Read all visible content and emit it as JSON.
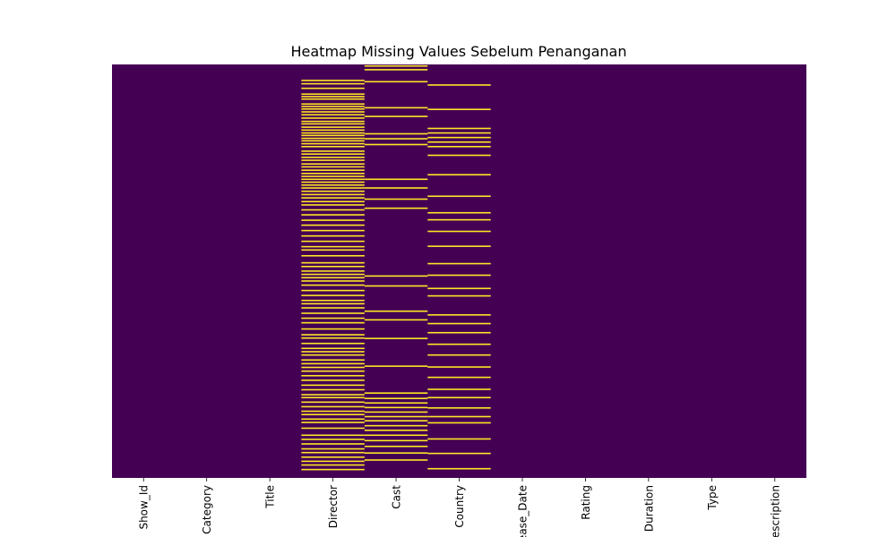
{
  "chart_data": {
    "type": "heatmap",
    "title": "Heatmap Missing Values Sebelum Penanganan",
    "columns": [
      "Show_Id",
      "Category",
      "Title",
      "Director",
      "Cast",
      "Country",
      "Release_Date",
      "Rating",
      "Duration",
      "Type",
      "Description"
    ],
    "y_tick_labels": "hidden",
    "colorbar": false,
    "value_colors": {
      "present": "#440154",
      "missing": "#fde725"
    },
    "missing_rows": {
      "Director": [
        0.037,
        0.045,
        0.056,
        0.07,
        0.076,
        0.082,
        0.094,
        0.1,
        0.106,
        0.113,
        0.12,
        0.128,
        0.136,
        0.142,
        0.15,
        0.157,
        0.164,
        0.17,
        0.177,
        0.183,
        0.19,
        0.197,
        0.208,
        0.215,
        0.223,
        0.23,
        0.239,
        0.246,
        0.254,
        0.262,
        0.269,
        0.276,
        0.283,
        0.29,
        0.297,
        0.305,
        0.313,
        0.321,
        0.33,
        0.338,
        0.35,
        0.362,
        0.375,
        0.387,
        0.4,
        0.413,
        0.426,
        0.439,
        0.447,
        0.461,
        0.478,
        0.487,
        0.498,
        0.506,
        0.514,
        0.522,
        0.532,
        0.545,
        0.557,
        0.569,
        0.577,
        0.587,
        0.6,
        0.612,
        0.623,
        0.638,
        0.652,
        0.66,
        0.673,
        0.685,
        0.693,
        0.701,
        0.713,
        0.722,
        0.731,
        0.74,
        0.751,
        0.762,
        0.774,
        0.785,
        0.797,
        0.804,
        0.815,
        0.826,
        0.837,
        0.845,
        0.856,
        0.864,
        0.878,
        0.895,
        0.905,
        0.916,
        0.928,
        0.937,
        0.948,
        0.958,
        0.967,
        0.978
      ],
      "Cast": [
        0.002,
        0.011,
        0.04,
        0.103,
        0.124,
        0.166,
        0.178,
        0.192,
        0.276,
        0.297,
        0.324,
        0.346,
        0.51,
        0.534,
        0.595,
        0.616,
        0.661,
        0.728,
        0.793,
        0.806,
        0.817,
        0.828,
        0.839,
        0.85,
        0.86,
        0.872,
        0.883,
        0.895,
        0.908,
        0.922,
        0.938,
        0.955
      ],
      "Country": [
        0.048,
        0.107,
        0.153,
        0.164,
        0.175,
        0.186,
        0.197,
        0.218,
        0.265,
        0.317,
        0.357,
        0.374,
        0.402,
        0.438,
        0.48,
        0.508,
        0.54,
        0.558,
        0.604,
        0.625,
        0.647,
        0.675,
        0.701,
        0.73,
        0.755,
        0.784,
        0.804,
        0.829,
        0.85,
        0.865,
        0.904,
        0.939,
        0.976
      ]
    }
  }
}
